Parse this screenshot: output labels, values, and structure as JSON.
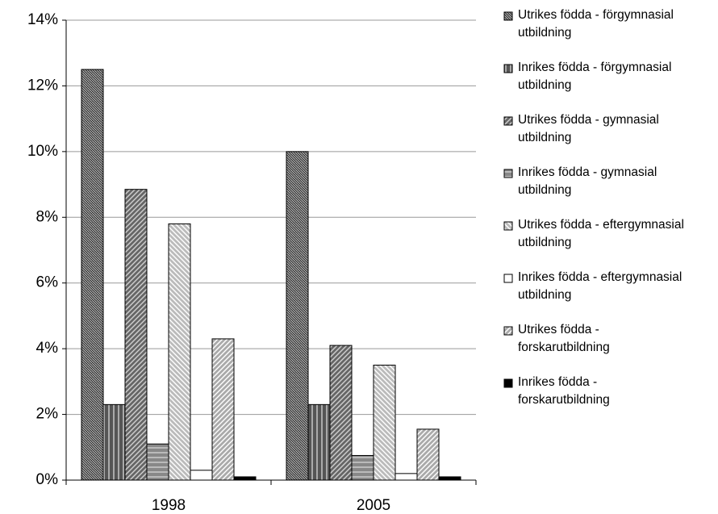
{
  "chart_data": {
    "type": "bar",
    "categories": [
      "1998",
      "2005"
    ],
    "series": [
      {
        "name": "Utrikes födda - förgymnasial utbildning",
        "color": "#3a3a3a",
        "pattern": "wave",
        "values": [
          12.5,
          10.0
        ]
      },
      {
        "name": "Inrikes födda - förgymnasial utbildning",
        "color": "#555555",
        "pattern": "vertical",
        "values": [
          2.3,
          2.3
        ]
      },
      {
        "name": "Utrikes födda - gymnasial utbildning",
        "color": "#666666",
        "pattern": "diagonal",
        "values": [
          8.85,
          4.1
        ]
      },
      {
        "name": "Inrikes födda - gymnasial utbildning",
        "color": "#888888",
        "pattern": "horizontal",
        "values": [
          1.1,
          0.75
        ]
      },
      {
        "name": "Utrikes födda - eftergymnasial utbildning",
        "color": "#bbbbbb",
        "pattern": "backdiagonal",
        "values": [
          7.8,
          3.5
        ]
      },
      {
        "name": "Inrikes födda - eftergymnasial utbildning",
        "color": "#ffffff",
        "pattern": "solid",
        "values": [
          0.3,
          0.2
        ]
      },
      {
        "name": "Utrikes födda - forskarutbildning",
        "color": "#aaaaaa",
        "pattern": "diagonal",
        "values": [
          4.3,
          1.55
        ]
      },
      {
        "name": "Inrikes födda - forskarutbildning",
        "color": "#000000",
        "pattern": "solid",
        "values": [
          0.1,
          0.1
        ]
      }
    ],
    "ylim": [
      0,
      14
    ],
    "yticks": [
      {
        "value": 0,
        "label": "0%"
      },
      {
        "value": 2,
        "label": "2%"
      },
      {
        "value": 4,
        "label": "4%"
      },
      {
        "value": 6,
        "label": "6%"
      },
      {
        "value": 8,
        "label": "8%"
      },
      {
        "value": 10,
        "label": "10%"
      },
      {
        "value": 12,
        "label": "12%"
      },
      {
        "value": 14,
        "label": "14%"
      }
    ],
    "grid": true,
    "legend": "right"
  }
}
